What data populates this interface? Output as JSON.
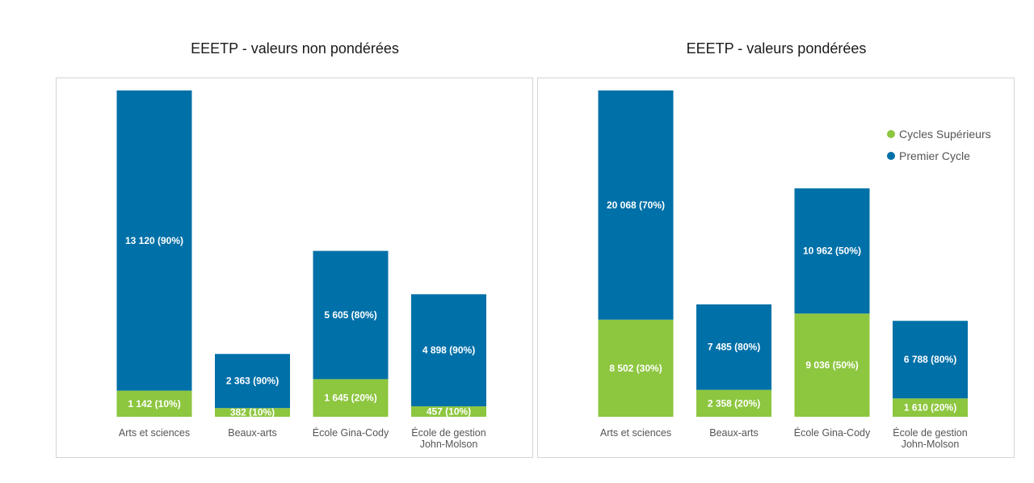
{
  "colors": {
    "cycles_superieurs": "#8dc63f",
    "premier_cycle": "#0070a8"
  },
  "legend": {
    "items": [
      {
        "label": "Cycles Supérieurs",
        "color": "#8dc63f"
      },
      {
        "label": "Premier Cycle",
        "color": "#0070a8"
      }
    ]
  },
  "chart_data": [
    {
      "type": "bar",
      "stacked": true,
      "title": "EEETP - valeurs non pondérées",
      "categories": [
        "Arts et sciences",
        "Beaux-arts",
        "École Gina-Cody",
        "École de gestion John-Molson"
      ],
      "series": [
        {
          "name": "Cycles Supérieurs",
          "values": [
            1142,
            382,
            1645,
            457
          ],
          "labels": [
            "1 142 (10%)",
            "382 (10%)",
            "1 645 (20%)",
            "457 (10%)"
          ]
        },
        {
          "name": "Premier Cycle",
          "values": [
            13120,
            2363,
            5605,
            4898
          ],
          "labels": [
            "13 120 (90%)",
            "2 363 (90%)",
            "5 605 (80%)",
            "4 898 (90%)"
          ]
        }
      ],
      "ylim": [
        0,
        14262
      ],
      "grid": false
    },
    {
      "type": "bar",
      "stacked": true,
      "title": "EEETP - valeurs pondérées",
      "categories": [
        "Arts et sciences",
        "Beaux-arts",
        "École Gina-Cody",
        "École de gestion John-Molson"
      ],
      "series": [
        {
          "name": "Cycles Supérieurs",
          "values": [
            8502,
            2358,
            9036,
            1610
          ],
          "labels": [
            "8 502 (30%)",
            "2 358 (20%)",
            "9 036 (50%)",
            "1 610 (20%)"
          ]
        },
        {
          "name": "Premier Cycle",
          "values": [
            20068,
            7485,
            10962,
            6788
          ],
          "labels": [
            "20 068 (70%)",
            "7 485 (80%)",
            "10 962 (50%)",
            "6 788 (80%)"
          ]
        }
      ],
      "ylim": [
        0,
        28570
      ],
      "grid": false,
      "legend_position": "top-right"
    }
  ]
}
